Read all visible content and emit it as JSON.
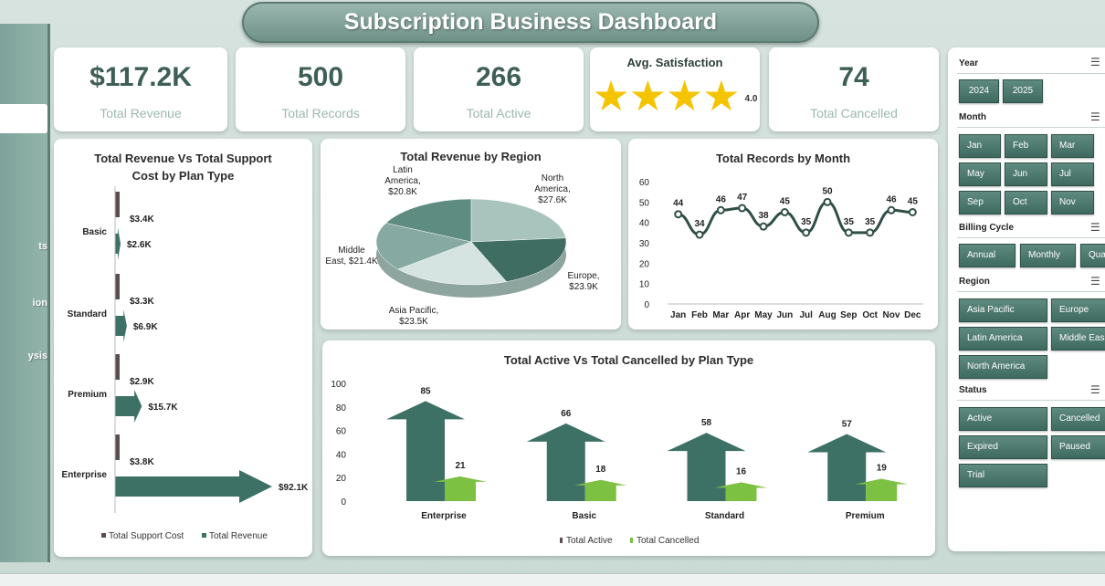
{
  "dashboard": {
    "title": "Subscription Business Dashboard"
  },
  "nav": {
    "items": [
      "ts",
      "ion",
      "ysis"
    ]
  },
  "kpis": {
    "revenue": {
      "value": "$117.2K",
      "label": "Total Revenue"
    },
    "records": {
      "value": "500",
      "label": "Total Records"
    },
    "active": {
      "value": "266",
      "label": "Total Active"
    },
    "satisfaction": {
      "label": "Avg. Satisfaction",
      "value": "4.0",
      "stars": 4
    },
    "cancelled": {
      "value": "74",
      "label": "Total Cancelled"
    }
  },
  "chart_data": [
    {
      "type": "bar",
      "title": "Total Revenue Vs Total Support Cost by Plan Type",
      "orientation": "horizontal",
      "categories": [
        "Basic",
        "Standard",
        "Premium",
        "Enterprise"
      ],
      "series": [
        {
          "name": "Total Support Cost",
          "values": [
            3.4,
            3.3,
            2.9,
            3.8
          ],
          "labels": [
            "$3.4K",
            "$3.3K",
            "$2.9K",
            "$3.8K"
          ],
          "color": "#5a4e4e"
        },
        {
          "name": "Total Revenue",
          "values": [
            2.6,
            6.9,
            15.7,
            92.1
          ],
          "labels": [
            "$2.6K",
            "$6.9K",
            "$15.7K",
            "$92.1K"
          ],
          "color": "#3e7166"
        }
      ],
      "unit": "K"
    },
    {
      "type": "pie",
      "title": "Total Revenue by Region",
      "slices": [
        {
          "label": "North America, $27.6K",
          "value": 27.6,
          "color": "#a8c4bd"
        },
        {
          "label": "Europe, $23.9K",
          "value": 23.9,
          "color": "#3f6d62"
        },
        {
          "label": "Asia Pacific, $23.5K",
          "value": 23.5,
          "color": "#d5e4e0"
        },
        {
          "label": "Middle East, $21.4K",
          "value": 21.4,
          "color": "#86aaa1"
        },
        {
          "label": "Latin America, $20.8K",
          "value": 20.8,
          "color": "#5f8c81"
        }
      ],
      "slice_labels": {
        "north_america": [
          "North",
          "America,",
          "$27.6K"
        ],
        "europe": [
          "Europe,",
          "$23.9K"
        ],
        "asia_pacific": [
          "Asia Pacific,",
          "$23.5K"
        ],
        "middle_east": [
          "Middle",
          "East, $21.4K"
        ],
        "latin_america": [
          "Latin",
          "America,",
          "$20.8K"
        ]
      }
    },
    {
      "type": "line",
      "title": "Total Records by Month",
      "categories": [
        "Jan",
        "Feb",
        "Mar",
        "Apr",
        "May",
        "Jun",
        "Jul",
        "Aug",
        "Sep",
        "Oct",
        "Nov",
        "Dec"
      ],
      "values": [
        44,
        34,
        46,
        47,
        38,
        45,
        35,
        50,
        35,
        35,
        46,
        45
      ],
      "ylim": [
        0,
        60
      ],
      "yticks": [
        0,
        10,
        20,
        30,
        40,
        50,
        60
      ],
      "color": "#2f4f47"
    },
    {
      "type": "bar",
      "title": "Total Active Vs Total Cancelled by Plan Type",
      "categories": [
        "Enterprise",
        "Basic",
        "Standard",
        "Premium"
      ],
      "series": [
        {
          "name": "Total Active",
          "values": [
            85,
            66,
            58,
            57
          ],
          "color": "#3e7166"
        },
        {
          "name": "Total Cancelled",
          "values": [
            21,
            18,
            16,
            19
          ],
          "color": "#7cc142"
        }
      ],
      "ylim": [
        0,
        100
      ],
      "yticks": [
        0,
        20,
        40,
        60,
        80,
        100
      ]
    }
  ],
  "slicers": {
    "year": {
      "header": "Year",
      "options": [
        "2024",
        "2025"
      ]
    },
    "month": {
      "header": "Month",
      "options": [
        "Jan",
        "Feb",
        "Mar",
        "May",
        "Jun",
        "Jul",
        "Sep",
        "Oct",
        "Nov"
      ]
    },
    "billing": {
      "header": "Billing Cycle",
      "options": [
        "Annual",
        "Monthly",
        "Qua"
      ]
    },
    "region": {
      "header": "Region",
      "options": [
        "Asia Pacific",
        "Europe",
        "Latin America",
        "Middle Eas",
        "North America"
      ]
    },
    "status": {
      "header": "Status",
      "options": [
        "Active",
        "Cancelled",
        "Expired",
        "Paused",
        "Trial"
      ]
    },
    "filter_icon": "multi-select-filter-icon"
  }
}
